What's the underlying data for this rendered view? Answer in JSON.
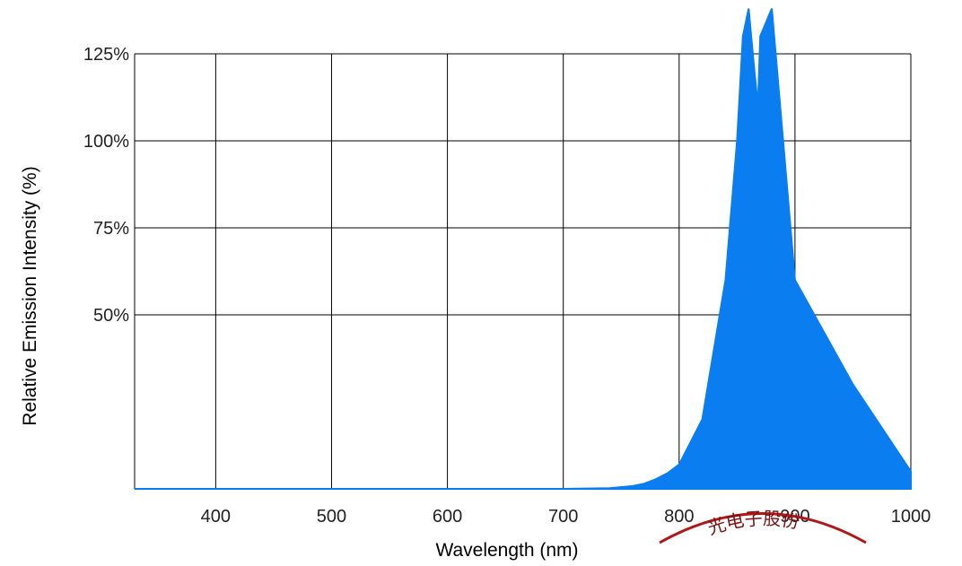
{
  "chart_data": {
    "type": "area",
    "xlabel": "Wavelength  (nm)",
    "ylabel": "Relative Emission Intensity (%)",
    "xlim": [
      330,
      1000
    ],
    "ylim": [
      0,
      125
    ],
    "x_ticks": [
      {
        "value": 400,
        "label": "400"
      },
      {
        "value": 500,
        "label": "500"
      },
      {
        "value": 600,
        "label": "600"
      },
      {
        "value": 700,
        "label": "700"
      },
      {
        "value": 800,
        "label": "800"
      },
      {
        "value": 900,
        "label": "900"
      },
      {
        "value": 1000,
        "label": "1000"
      }
    ],
    "y_ticks": [
      {
        "value": 50,
        "label": "50%"
      },
      {
        "value": 75,
        "label": "75%"
      },
      {
        "value": 100,
        "label": "100%"
      },
      {
        "value": 125,
        "label": "125%"
      }
    ],
    "grid": true,
    "series": [
      {
        "color": "#0a7df0",
        "x": [
          330,
          600,
          700,
          740,
          760,
          770,
          780,
          790,
          800,
          820,
          840,
          850,
          855,
          860,
          865,
          868,
          870,
          880,
          900,
          950,
          1000
        ],
        "y": [
          0,
          0,
          0,
          0.2,
          0.8,
          1.5,
          2.8,
          4.5,
          7,
          20,
          60,
          100,
          130,
          138,
          120,
          110,
          130,
          138,
          60,
          30,
          5
        ]
      }
    ],
    "seal_text": "光电子股份"
  }
}
